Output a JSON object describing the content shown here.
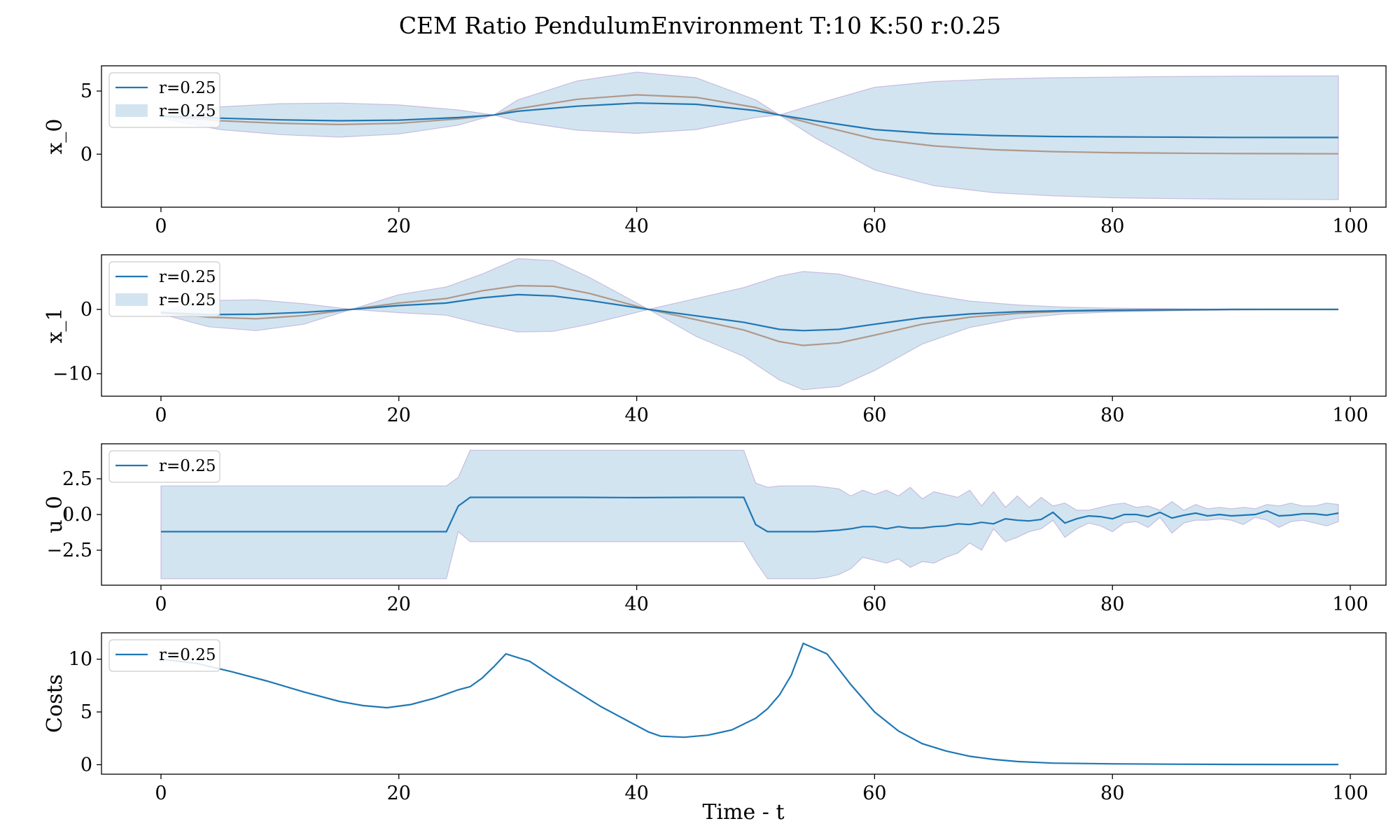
{
  "figure": {
    "title": "CEM Ratio PendulumEnvironment T:10 K:50 r:0.25",
    "xlabel": "Time - t"
  },
  "colors": {
    "line": "#1f77b4",
    "band": "#1f77b4",
    "band_opacity": 0.2,
    "mean_line": "#b0988a",
    "axes": "#000000"
  },
  "chart_data": [
    {
      "type": "line",
      "ylabel": "x_0",
      "xlim": [
        -5,
        103
      ],
      "ylim": [
        -4.2,
        7.0
      ],
      "xticks": [
        0,
        20,
        40,
        60,
        80,
        100
      ],
      "yticks": [
        {
          "value": 5,
          "label": "5"
        },
        {
          "value": 0,
          "label": "0"
        }
      ],
      "legend": {
        "position": "upper left",
        "entries": [
          {
            "kind": "line",
            "label": "r=0.25"
          },
          {
            "kind": "band",
            "label": "r=0.25"
          }
        ]
      },
      "x": [
        0,
        5,
        10,
        15,
        20,
        25,
        28,
        30,
        35,
        40,
        45,
        50,
        52,
        55,
        60,
        65,
        70,
        75,
        80,
        85,
        90,
        95,
        99
      ],
      "series": [
        {
          "role": "line",
          "values": [
            3.0,
            2.85,
            2.72,
            2.65,
            2.7,
            2.9,
            3.1,
            3.4,
            3.8,
            4.05,
            3.95,
            3.45,
            3.1,
            2.65,
            1.95,
            1.62,
            1.48,
            1.4,
            1.37,
            1.35,
            1.33,
            1.32,
            1.32
          ]
        },
        {
          "role": "band-mean",
          "values": [
            3.0,
            2.65,
            2.45,
            2.35,
            2.45,
            2.8,
            3.1,
            3.6,
            4.35,
            4.7,
            4.5,
            3.7,
            3.1,
            2.35,
            1.2,
            0.65,
            0.35,
            0.2,
            0.12,
            0.08,
            0.05,
            0.04,
            0.03
          ]
        },
        {
          "role": "band-upper",
          "values": [
            3.2,
            3.75,
            4.0,
            4.05,
            3.9,
            3.5,
            3.1,
            4.3,
            5.8,
            6.5,
            6.05,
            4.3,
            3.1,
            3.95,
            5.3,
            5.75,
            5.95,
            6.05,
            6.1,
            6.15,
            6.18,
            6.19,
            6.2
          ]
        },
        {
          "role": "band-lower",
          "values": [
            2.8,
            1.95,
            1.55,
            1.35,
            1.6,
            2.3,
            3.1,
            2.6,
            1.9,
            1.65,
            1.95,
            2.9,
            3.1,
            1.3,
            -1.25,
            -2.5,
            -3.05,
            -3.3,
            -3.45,
            -3.52,
            -3.56,
            -3.58,
            -3.6
          ]
        }
      ]
    },
    {
      "type": "line",
      "ylabel": "x_1",
      "xlim": [
        -5,
        103
      ],
      "ylim": [
        -13.5,
        8.5
      ],
      "xticks": [
        0,
        20,
        40,
        60,
        80,
        100
      ],
      "yticks": [
        {
          "value": 0,
          "label": "0"
        },
        {
          "value": -10,
          "label": "−10"
        }
      ],
      "legend": {
        "position": "upper left",
        "entries": [
          {
            "kind": "line",
            "label": "r=0.25"
          },
          {
            "kind": "band",
            "label": "r=0.25"
          }
        ]
      },
      "x": [
        0,
        4,
        8,
        12,
        16,
        20,
        24,
        27,
        30,
        33,
        36,
        41,
        45,
        49,
        52,
        54,
        57,
        60,
        64,
        68,
        72,
        76,
        80,
        85,
        90,
        95,
        99
      ],
      "series": [
        {
          "role": "line",
          "values": [
            -0.5,
            -0.8,
            -0.75,
            -0.45,
            0.0,
            0.6,
            1.0,
            1.8,
            2.3,
            2.1,
            1.4,
            0.0,
            -1.0,
            -2.0,
            -3.1,
            -3.3,
            -3.1,
            -2.3,
            -1.3,
            -0.7,
            -0.35,
            -0.2,
            -0.1,
            -0.05,
            0.0,
            0.0,
            0.0
          ]
        },
        {
          "role": "band-mean",
          "values": [
            -0.5,
            -1.2,
            -1.45,
            -0.95,
            0.0,
            1.0,
            1.7,
            2.9,
            3.7,
            3.6,
            2.5,
            0.0,
            -1.6,
            -3.2,
            -5.0,
            -5.6,
            -5.2,
            -4.0,
            -2.3,
            -1.2,
            -0.6,
            -0.3,
            -0.2,
            -0.1,
            0.0,
            0.0,
            0.0
          ]
        },
        {
          "role": "band-upper",
          "values": [
            -0.3,
            1.4,
            1.5,
            0.9,
            0.0,
            2.3,
            3.5,
            5.5,
            7.9,
            7.6,
            5.0,
            0.0,
            1.7,
            3.4,
            5.2,
            5.9,
            5.5,
            4.2,
            2.5,
            1.3,
            0.7,
            0.35,
            0.2,
            0.1,
            0.0,
            0.0,
            0.0
          ]
        },
        {
          "role": "band-lower",
          "values": [
            -0.7,
            -2.7,
            -3.3,
            -2.3,
            0.0,
            -0.5,
            -0.9,
            -2.3,
            -3.5,
            -3.4,
            -2.3,
            0.0,
            -4.2,
            -7.3,
            -11.0,
            -12.5,
            -12.0,
            -9.5,
            -5.4,
            -2.8,
            -1.4,
            -0.7,
            -0.4,
            -0.2,
            -0.1,
            0.0,
            0.0
          ]
        }
      ]
    },
    {
      "type": "line",
      "ylabel": "u_0",
      "xlim": [
        -5,
        103
      ],
      "ylim": [
        -4.95,
        4.95
      ],
      "xticks": [
        0,
        20,
        40,
        60,
        80,
        100
      ],
      "yticks": [
        {
          "value": 2.5,
          "label": "2.5"
        },
        {
          "value": 0,
          "label": "0.0"
        },
        {
          "value": -2.5,
          "label": "−2.5"
        }
      ],
      "legend": {
        "position": "upper left",
        "entries": [
          {
            "kind": "line",
            "label": "r=0.25"
          }
        ]
      },
      "x": [
        0,
        5,
        10,
        15,
        20,
        24,
        25,
        26,
        30,
        35,
        40,
        45,
        49,
        50,
        51,
        52,
        55,
        56,
        57,
        58,
        59,
        60,
        61,
        62,
        63,
        64,
        65,
        66,
        67,
        68,
        69,
        70,
        71,
        72,
        73,
        74,
        75,
        76,
        77,
        78,
        79,
        80,
        81,
        82,
        83,
        84,
        85,
        86,
        87,
        88,
        89,
        90,
        91,
        92,
        93,
        94,
        95,
        96,
        97,
        98,
        99
      ],
      "series": [
        {
          "role": "line",
          "values": [
            -1.2,
            -1.2,
            -1.2,
            -1.2,
            -1.2,
            -1.2,
            0.6,
            1.2,
            1.2,
            1.2,
            1.18,
            1.2,
            1.2,
            -0.7,
            -1.2,
            -1.2,
            -1.2,
            -1.15,
            -1.1,
            -1.0,
            -0.85,
            -0.85,
            -1.0,
            -0.85,
            -0.95,
            -0.95,
            -0.85,
            -0.8,
            -0.65,
            -0.7,
            -0.55,
            -0.65,
            -0.3,
            -0.4,
            -0.45,
            -0.35,
            0.15,
            -0.6,
            -0.3,
            -0.1,
            -0.15,
            -0.3,
            0.0,
            0.0,
            -0.15,
            0.15,
            -0.25,
            -0.05,
            0.1,
            -0.1,
            0.0,
            -0.1,
            -0.05,
            0.0,
            0.25,
            -0.1,
            -0.05,
            0.05,
            0.05,
            -0.05,
            0.1
          ]
        },
        {
          "role": "band-upper",
          "values": [
            2.0,
            2.0,
            2.0,
            2.0,
            2.0,
            2.0,
            2.6,
            4.5,
            4.5,
            4.5,
            4.5,
            4.5,
            4.5,
            2.2,
            1.9,
            2.0,
            2.0,
            1.9,
            1.8,
            1.3,
            1.7,
            1.4,
            1.7,
            1.3,
            1.9,
            1.1,
            1.6,
            1.4,
            1.2,
            1.7,
            0.6,
            1.6,
            0.5,
            1.3,
            0.5,
            1.2,
            0.6,
            0.8,
            0.3,
            0.3,
            0.5,
            0.7,
            0.8,
            0.5,
            0.6,
            0.3,
            0.9,
            0.3,
            0.7,
            0.4,
            0.5,
            0.4,
            0.5,
            0.4,
            0.7,
            0.6,
            0.8,
            0.6,
            0.6,
            0.8,
            0.7
          ]
        },
        {
          "role": "band-lower",
          "values": [
            -4.5,
            -4.5,
            -4.5,
            -4.5,
            -4.5,
            -4.5,
            -1.2,
            -1.9,
            -1.9,
            -1.9,
            -1.9,
            -1.9,
            -1.9,
            -3.3,
            -4.5,
            -4.5,
            -4.5,
            -4.4,
            -4.2,
            -3.8,
            -3.0,
            -3.2,
            -3.4,
            -3.1,
            -3.7,
            -3.3,
            -3.4,
            -3.0,
            -2.7,
            -2.0,
            -2.5,
            -1.0,
            -1.9,
            -1.6,
            -1.2,
            -1.0,
            -0.4,
            -1.6,
            -1.0,
            -0.6,
            -0.8,
            -1.2,
            -0.6,
            -0.5,
            -0.9,
            -0.2,
            -1.3,
            -0.6,
            -0.4,
            -0.4,
            -0.3,
            -0.4,
            -0.7,
            -0.2,
            -0.4,
            -0.9,
            -0.5,
            -0.4,
            -0.6,
            -0.8,
            -0.5
          ]
        }
      ]
    },
    {
      "type": "line",
      "ylabel": "Costs",
      "xlim": [
        -5,
        103
      ],
      "ylim": [
        -0.9,
        12.5
      ],
      "xticks": [
        0,
        20,
        40,
        60,
        80,
        100
      ],
      "yticks": [
        {
          "value": 10,
          "label": "10"
        },
        {
          "value": 5,
          "label": "5"
        },
        {
          "value": 0,
          "label": "0"
        }
      ],
      "legend": {
        "position": "upper left",
        "entries": [
          {
            "kind": "line",
            "label": "r=0.25"
          }
        ]
      },
      "x": [
        0,
        3,
        6,
        9,
        12,
        15,
        17,
        19,
        21,
        23,
        25,
        26,
        27,
        28,
        29,
        31,
        33,
        35,
        37,
        39,
        41,
        42,
        44,
        46,
        48,
        50,
        51,
        52,
        53,
        54,
        56,
        58,
        60,
        62,
        64,
        66,
        68,
        70,
        72,
        75,
        80,
        85,
        90,
        95,
        99
      ],
      "series": [
        {
          "role": "line",
          "values": [
            10.0,
            9.6,
            8.8,
            7.9,
            6.9,
            6.0,
            5.6,
            5.4,
            5.7,
            6.3,
            7.1,
            7.4,
            8.2,
            9.3,
            10.5,
            9.8,
            8.3,
            6.9,
            5.5,
            4.3,
            3.1,
            2.7,
            2.6,
            2.8,
            3.3,
            4.4,
            5.3,
            6.6,
            8.5,
            11.5,
            10.5,
            7.6,
            5.0,
            3.2,
            2.0,
            1.3,
            0.8,
            0.5,
            0.3,
            0.15,
            0.08,
            0.05,
            0.03,
            0.02,
            0.02
          ]
        }
      ]
    }
  ]
}
